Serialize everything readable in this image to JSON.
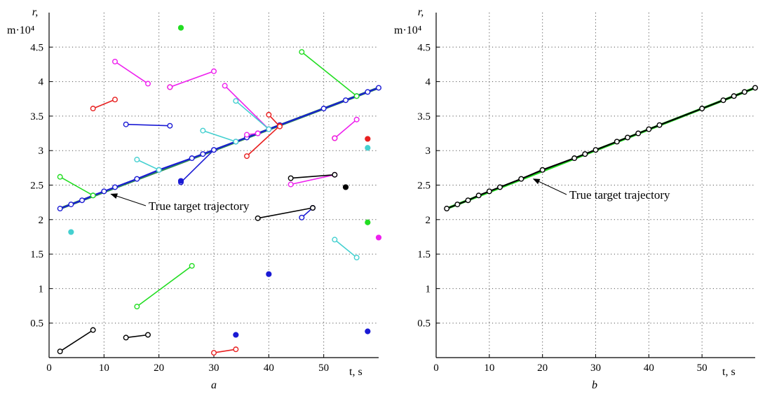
{
  "chart_data": [
    {
      "type": "scatter",
      "panel_label": "a",
      "xlabel": "t, s",
      "ylabel_lines": [
        "r,",
        "m·10⁴"
      ],
      "xlim": [
        0,
        60
      ],
      "ylim": [
        0,
        5
      ],
      "xticks": [
        0,
        10,
        20,
        30,
        40,
        50
      ],
      "yticks": [
        0.5,
        1,
        1.5,
        2,
        2.5,
        3,
        3.5,
        4,
        4.5
      ],
      "ytick_labels": [
        "0.5",
        "1",
        "1.5",
        "2",
        "2.5",
        "3",
        "3.5",
        "4",
        "4.5"
      ],
      "grid": true,
      "annotation": {
        "text": "True target trajectory",
        "arrow_to": [
          10.5,
          2.41
        ]
      },
      "true_trajectory": {
        "color": "#2e8b57",
        "x": [
          2,
          60
        ],
        "y": [
          2.16,
          3.91
        ]
      },
      "series": [
        {
          "color": "#1a1ad4",
          "points": [
            [
              2,
              2.16
            ],
            [
              4,
              2.22
            ],
            [
              6,
              2.28
            ],
            [
              8,
              2.35
            ],
            [
              10,
              2.41
            ],
            [
              12,
              2.47
            ],
            [
              16,
              2.59
            ],
            [
              20,
              2.72
            ],
            [
              26,
              2.89
            ],
            [
              28,
              2.95
            ],
            [
              30,
              3.01
            ],
            [
              34,
              3.13
            ],
            [
              36,
              3.19
            ],
            [
              38,
              3.25
            ],
            [
              40,
              3.31
            ],
            [
              42,
              3.37
            ],
            [
              50,
              3.61
            ],
            [
              54,
              3.73
            ],
            [
              56,
              3.79
            ],
            [
              58,
              3.85
            ],
            [
              60,
              3.91
            ]
          ]
        },
        {
          "color": "#1a1ad4",
          "points": [
            [
              14,
              3.38
            ],
            [
              22,
              3.36
            ]
          ]
        },
        {
          "color": "#1a1ad4",
          "points": [
            [
              24,
              2.54
            ],
            [
              30,
              3.01
            ]
          ]
        },
        {
          "color": "#1a1ad4",
          "points": [
            [
              46,
              2.03
            ],
            [
              48,
              2.17
            ]
          ]
        },
        {
          "color": "#1a1ad4",
          "points": [
            [
              40,
              1.21
            ]
          ]
        },
        {
          "color": "#1a1ad4",
          "points": [
            [
              34,
              0.33
            ]
          ]
        },
        {
          "color": "#1a1ad4",
          "points": [
            [
              58,
              0.38
            ]
          ]
        },
        {
          "color": "#1a1ad4",
          "points": [
            [
              24,
              2.56
            ]
          ]
        },
        {
          "color": "#e82020",
          "points": [
            [
              8,
              3.61
            ],
            [
              12,
              3.74
            ]
          ]
        },
        {
          "color": "#e82020",
          "points": [
            [
              22,
              3.92
            ]
          ]
        },
        {
          "color": "#e82020",
          "points": [
            [
              36,
              2.92
            ],
            [
              42,
              3.36
            ]
          ]
        },
        {
          "color": "#e82020",
          "points": [
            [
              40,
              3.52
            ],
            [
              42,
              3.35
            ]
          ]
        },
        {
          "color": "#e82020",
          "points": [
            [
              30,
              0.07
            ],
            [
              34,
              0.12
            ]
          ]
        },
        {
          "color": "#e82020",
          "points": [
            [
              52,
              3.18
            ]
          ]
        },
        {
          "color": "#e82020",
          "points": [
            [
              58,
              3.17
            ]
          ]
        },
        {
          "color": "#ee20ee",
          "points": [
            [
              12,
              4.29
            ],
            [
              18,
              3.97
            ]
          ]
        },
        {
          "color": "#ee20ee",
          "points": [
            [
              22,
              3.92
            ],
            [
              30,
              4.15
            ]
          ]
        },
        {
          "color": "#ee20ee",
          "points": [
            [
              32,
              3.94
            ],
            [
              40,
              3.31
            ]
          ]
        },
        {
          "color": "#ee20ee",
          "points": [
            [
              36,
              3.23
            ],
            [
              38,
              3.25
            ]
          ]
        },
        {
          "color": "#ee20ee",
          "points": [
            [
              44,
              2.51
            ],
            [
              52,
              2.65
            ]
          ]
        },
        {
          "color": "#ee20ee",
          "points": [
            [
              52,
              3.18
            ],
            [
              56,
              3.45
            ]
          ]
        },
        {
          "color": "#ee20ee",
          "points": [
            [
              60,
              1.74
            ]
          ]
        },
        {
          "color": "#22dd22",
          "points": [
            [
              2,
              2.62
            ],
            [
              8,
              2.35
            ]
          ]
        },
        {
          "color": "#22dd22",
          "points": [
            [
              46,
              4.43
            ],
            [
              56,
              3.79
            ]
          ]
        },
        {
          "color": "#22dd22",
          "points": [
            [
              16,
              0.74
            ],
            [
              26,
              1.33
            ]
          ]
        },
        {
          "color": "#22dd22",
          "points": [
            [
              24,
              4.78
            ]
          ]
        },
        {
          "color": "#22dd22",
          "points": [
            [
              58,
              1.96
            ]
          ]
        },
        {
          "color": "#44d0d0",
          "points": [
            [
              34,
              3.72
            ],
            [
              40,
              3.31
            ]
          ]
        },
        {
          "color": "#44d0d0",
          "points": [
            [
              28,
              3.29
            ],
            [
              34,
              3.13
            ]
          ]
        },
        {
          "color": "#44d0d0",
          "points": [
            [
              16,
              2.87
            ],
            [
              20,
              2.72
            ]
          ]
        },
        {
          "color": "#44d0d0",
          "points": [
            [
              52,
              1.71
            ],
            [
              56,
              1.45
            ]
          ]
        },
        {
          "color": "#44d0d0",
          "points": [
            [
              4,
              1.82
            ]
          ]
        },
        {
          "color": "#44d0d0",
          "points": [
            [
              58,
              3.04
            ]
          ]
        },
        {
          "color": "#000000",
          "points": [
            [
              44,
              2.6
            ],
            [
              52,
              2.65
            ]
          ]
        },
        {
          "color": "#000000",
          "points": [
            [
              38,
              2.02
            ],
            [
              48,
              2.17
            ]
          ]
        },
        {
          "color": "#000000",
          "points": [
            [
              2,
              0.09
            ],
            [
              8,
              0.4
            ]
          ]
        },
        {
          "color": "#000000",
          "points": [
            [
              14,
              0.29
            ],
            [
              18,
              0.33
            ]
          ]
        },
        {
          "color": "#000000",
          "points": [
            [
              54,
              2.47
            ]
          ]
        }
      ]
    },
    {
      "type": "line",
      "panel_label": "b",
      "xlabel": "t, s",
      "ylabel_lines": [
        "r,",
        "m·10⁴"
      ],
      "xlim": [
        0,
        60
      ],
      "ylim": [
        0,
        5
      ],
      "xticks": [
        0,
        10,
        20,
        30,
        40,
        50
      ],
      "yticks": [
        0.5,
        1,
        1.5,
        2,
        2.5,
        3,
        3.5,
        4,
        4.5
      ],
      "ytick_labels": [
        "0.5",
        "1",
        "1.5",
        "2",
        "2.5",
        "3",
        "3.5",
        "4",
        "4.5"
      ],
      "grid": true,
      "annotation": {
        "text": "True target trajectory",
        "arrow_to": [
          17.5,
          2.63
        ]
      },
      "true_trajectory": {
        "color": "#22dd22",
        "x": [
          2,
          60
        ],
        "y": [
          2.16,
          3.91
        ]
      },
      "series": [
        {
          "color": "#000000",
          "points": [
            [
              2,
              2.16
            ],
            [
              4,
              2.22
            ],
            [
              6,
              2.28
            ],
            [
              8,
              2.35
            ],
            [
              10,
              2.41
            ],
            [
              12,
              2.47
            ],
            [
              16,
              2.59
            ],
            [
              20,
              2.72
            ],
            [
              26,
              2.89
            ],
            [
              28,
              2.95
            ],
            [
              30,
              3.01
            ],
            [
              34,
              3.13
            ],
            [
              36,
              3.19
            ],
            [
              38,
              3.25
            ],
            [
              40,
              3.31
            ],
            [
              42,
              3.37
            ],
            [
              50,
              3.61
            ],
            [
              54,
              3.73
            ],
            [
              56,
              3.79
            ],
            [
              58,
              3.85
            ],
            [
              60,
              3.91
            ]
          ]
        }
      ]
    }
  ]
}
